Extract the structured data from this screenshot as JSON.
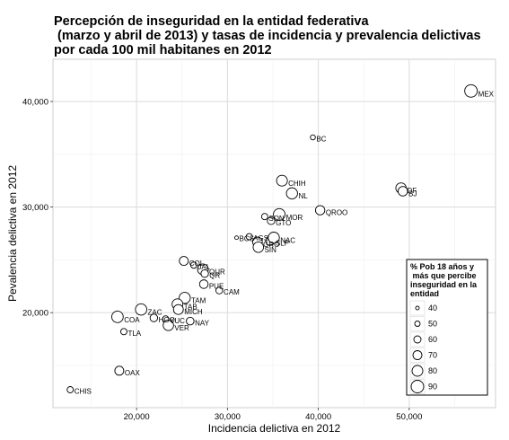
{
  "chart_data": {
    "type": "scatter",
    "title_lines": [
      "Percepción de inseguridad en la entidad federativa",
      " (marzo y abril de 2013) y tasas de incidencia y prevalencia delictivas",
      "por cada 100 mil habitanes en 2012"
    ],
    "xlabel": "Incidencia delictiva en 2012",
    "ylabel": "Pevalencia delictiva en 2012",
    "xlim": [
      10800,
      59500
    ],
    "ylim": [
      11000,
      44000
    ],
    "xticks": [
      20000,
      30000,
      40000,
      50000
    ],
    "xtick_labels": [
      "20,000",
      "30,000",
      "40,000",
      "50,000"
    ],
    "yticks": [
      20000,
      30000,
      40000
    ],
    "ytick_labels": [
      "20,000",
      "30,000",
      "40,000"
    ],
    "grid": true,
    "legend": {
      "title_lines": [
        "% Pob 18 años y",
        " más que percibe",
        "inseguridad en la",
        "entidad"
      ],
      "sizes": [
        40,
        50,
        60,
        70,
        80,
        90
      ],
      "size_labels": [
        "40",
        "50",
        "60",
        "70",
        "80",
        "90"
      ],
      "placement": "bottom-right"
    },
    "points": [
      {
        "label": "MEX",
        "x": 56800,
        "y": 41000,
        "size": 90
      },
      {
        "label": "BC",
        "x": 39400,
        "y": 36600,
        "size": 48
      },
      {
        "label": "CHIH",
        "x": 36000,
        "y": 32500,
        "size": 80
      },
      {
        "label": "NL",
        "x": 37100,
        "y": 31300,
        "size": 82
      },
      {
        "label": "DF",
        "x": 49100,
        "y": 31800,
        "size": 78
      },
      {
        "label": "BJ",
        "x": 49300,
        "y": 31500,
        "size": 73
      },
      {
        "label": "QROO",
        "x": 40200,
        "y": 29700,
        "size": 72
      },
      {
        "label": "MOR",
        "x": 35700,
        "y": 29300,
        "size": 85
      },
      {
        "label": "SON",
        "x": 34100,
        "y": 29100,
        "size": 55
      },
      {
        "label": "GTO",
        "x": 34800,
        "y": 28700,
        "size": 62
      },
      {
        "label": "SLP",
        "x": 34700,
        "y": 26800,
        "size": 70
      },
      {
        "label": "NAC",
        "x": 35100,
        "y": 27100,
        "size": 82
      },
      {
        "label": "BCS",
        "x": 31000,
        "y": 27100,
        "size": 40
      },
      {
        "label": "AGS",
        "x": 32400,
        "y": 27200,
        "size": 55
      },
      {
        "label": "GRO",
        "x": 33300,
        "y": 26700,
        "size": 74
      },
      {
        "label": "SIN",
        "x": 33400,
        "y": 26200,
        "size": 78
      },
      {
        "label": "COL",
        "x": 25200,
        "y": 24900,
        "size": 70
      },
      {
        "label": "JAL",
        "x": 26300,
        "y": 24500,
        "size": 55
      },
      {
        "label": "QUR",
        "x": 27300,
        "y": 24100,
        "size": 80
      },
      {
        "label": "QR",
        "x": 27500,
        "y": 23700,
        "size": 62
      },
      {
        "label": "PUE",
        "x": 27400,
        "y": 22700,
        "size": 68
      },
      {
        "label": "CAM",
        "x": 29100,
        "y": 22100,
        "size": 58
      },
      {
        "label": "TAM",
        "x": 25300,
        "y": 21400,
        "size": 82
      },
      {
        "label": "TAB",
        "x": 24500,
        "y": 20800,
        "size": 80
      },
      {
        "label": "MICH",
        "x": 24600,
        "y": 20300,
        "size": 75
      },
      {
        "label": "ZAC",
        "x": 20500,
        "y": 20300,
        "size": 83
      },
      {
        "label": "HGO",
        "x": 21900,
        "y": 19500,
        "size": 62
      },
      {
        "label": "YUC",
        "x": 23200,
        "y": 19400,
        "size": 55
      },
      {
        "label": "NAY",
        "x": 25900,
        "y": 19200,
        "size": 63
      },
      {
        "label": "VER",
        "x": 23500,
        "y": 18800,
        "size": 78
      },
      {
        "label": "COA",
        "x": 17900,
        "y": 19600,
        "size": 84
      },
      {
        "label": "TLA",
        "x": 18600,
        "y": 18200,
        "size": 55
      },
      {
        "label": "OAX",
        "x": 18100,
        "y": 14500,
        "size": 70
      },
      {
        "label": "CHIS",
        "x": 12700,
        "y": 12700,
        "size": 55
      }
    ]
  }
}
